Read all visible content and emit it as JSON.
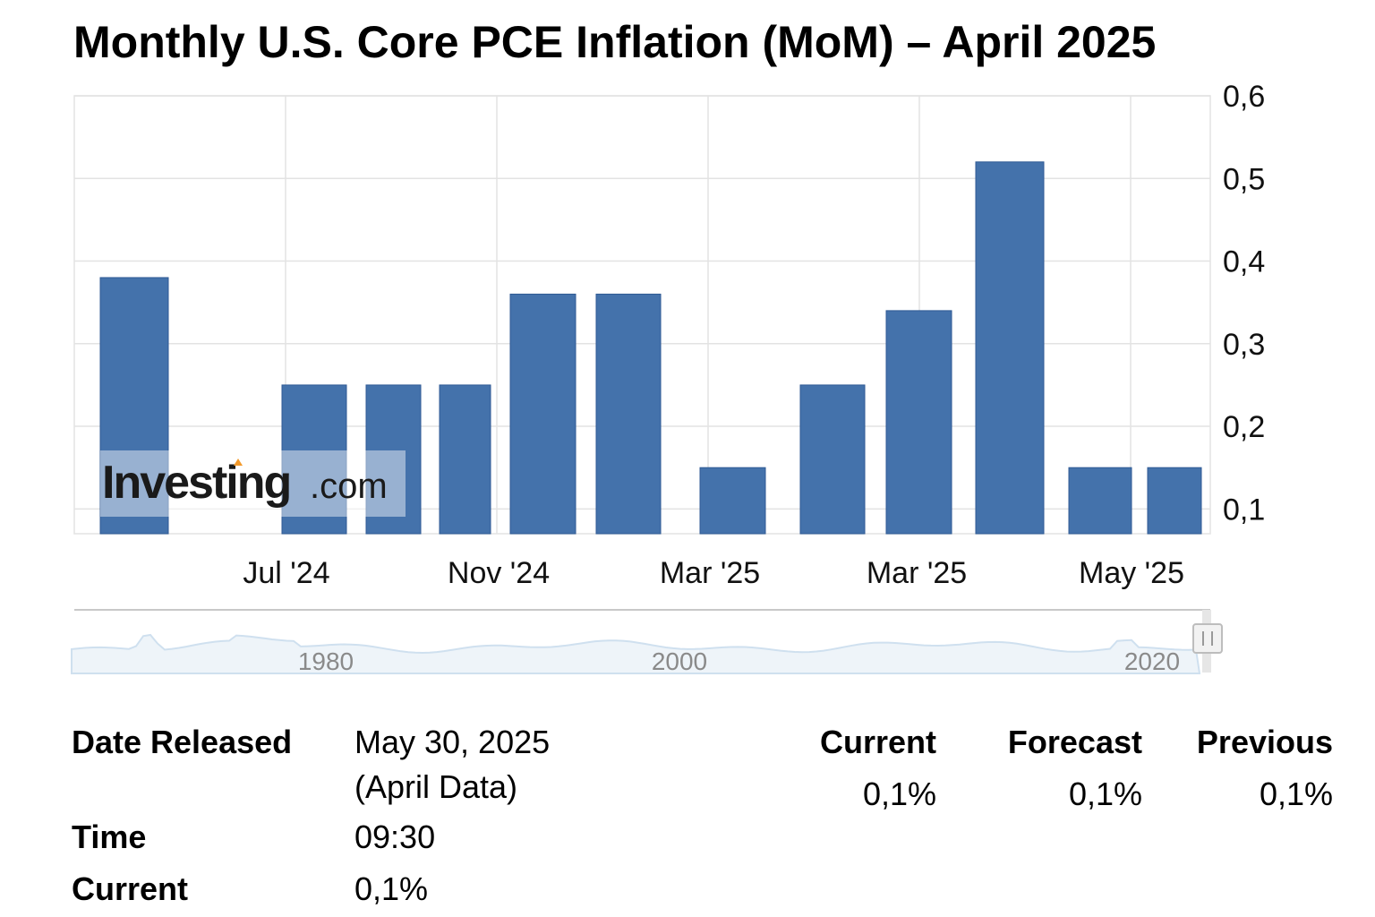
{
  "title": "Monthly U.S. Core PCE Inflation (MoM) – April 2025",
  "colors": {
    "bar": "#4472ab",
    "bar_edge": "#2f5a94",
    "grid": "#e3e3e3",
    "nav": "#cfe0ef"
  },
  "watermark": {
    "brand": "Investing",
    "suffix": ".com"
  },
  "chart_data": {
    "type": "bar",
    "values": [
      0.38,
      0.25,
      0.25,
      0.25,
      0.36,
      0.36,
      0.15,
      0.25,
      0.34,
      0.52,
      0.15,
      0.15
    ],
    "ylim": [
      0.07,
      0.6
    ],
    "yticks": [
      0.1,
      0.2,
      0.3,
      0.4,
      0.5,
      0.6
    ],
    "ytick_labels": [
      "0,1",
      "0,2",
      "0,3",
      "0,4",
      "0,5",
      "0,6"
    ],
    "xtick_labels": [
      "Jul '24",
      "Nov '24",
      "Mar '25",
      "Mar '25",
      "May '25"
    ],
    "grid": true,
    "navigator_labels": [
      "1980",
      "2000",
      "2020"
    ]
  },
  "info": {
    "date_label": "Date Released",
    "date_value": "May 30, 2025",
    "date_note": "(April Data)",
    "time_label": "Time",
    "time_value": "09:30",
    "current_label": "Current",
    "current_value": "0,1%"
  },
  "stats": [
    {
      "label": "Current",
      "value": "0,1%"
    },
    {
      "label": "Forecast",
      "value": "0,1%"
    },
    {
      "label": "Previous",
      "value": "0,1%"
    }
  ]
}
